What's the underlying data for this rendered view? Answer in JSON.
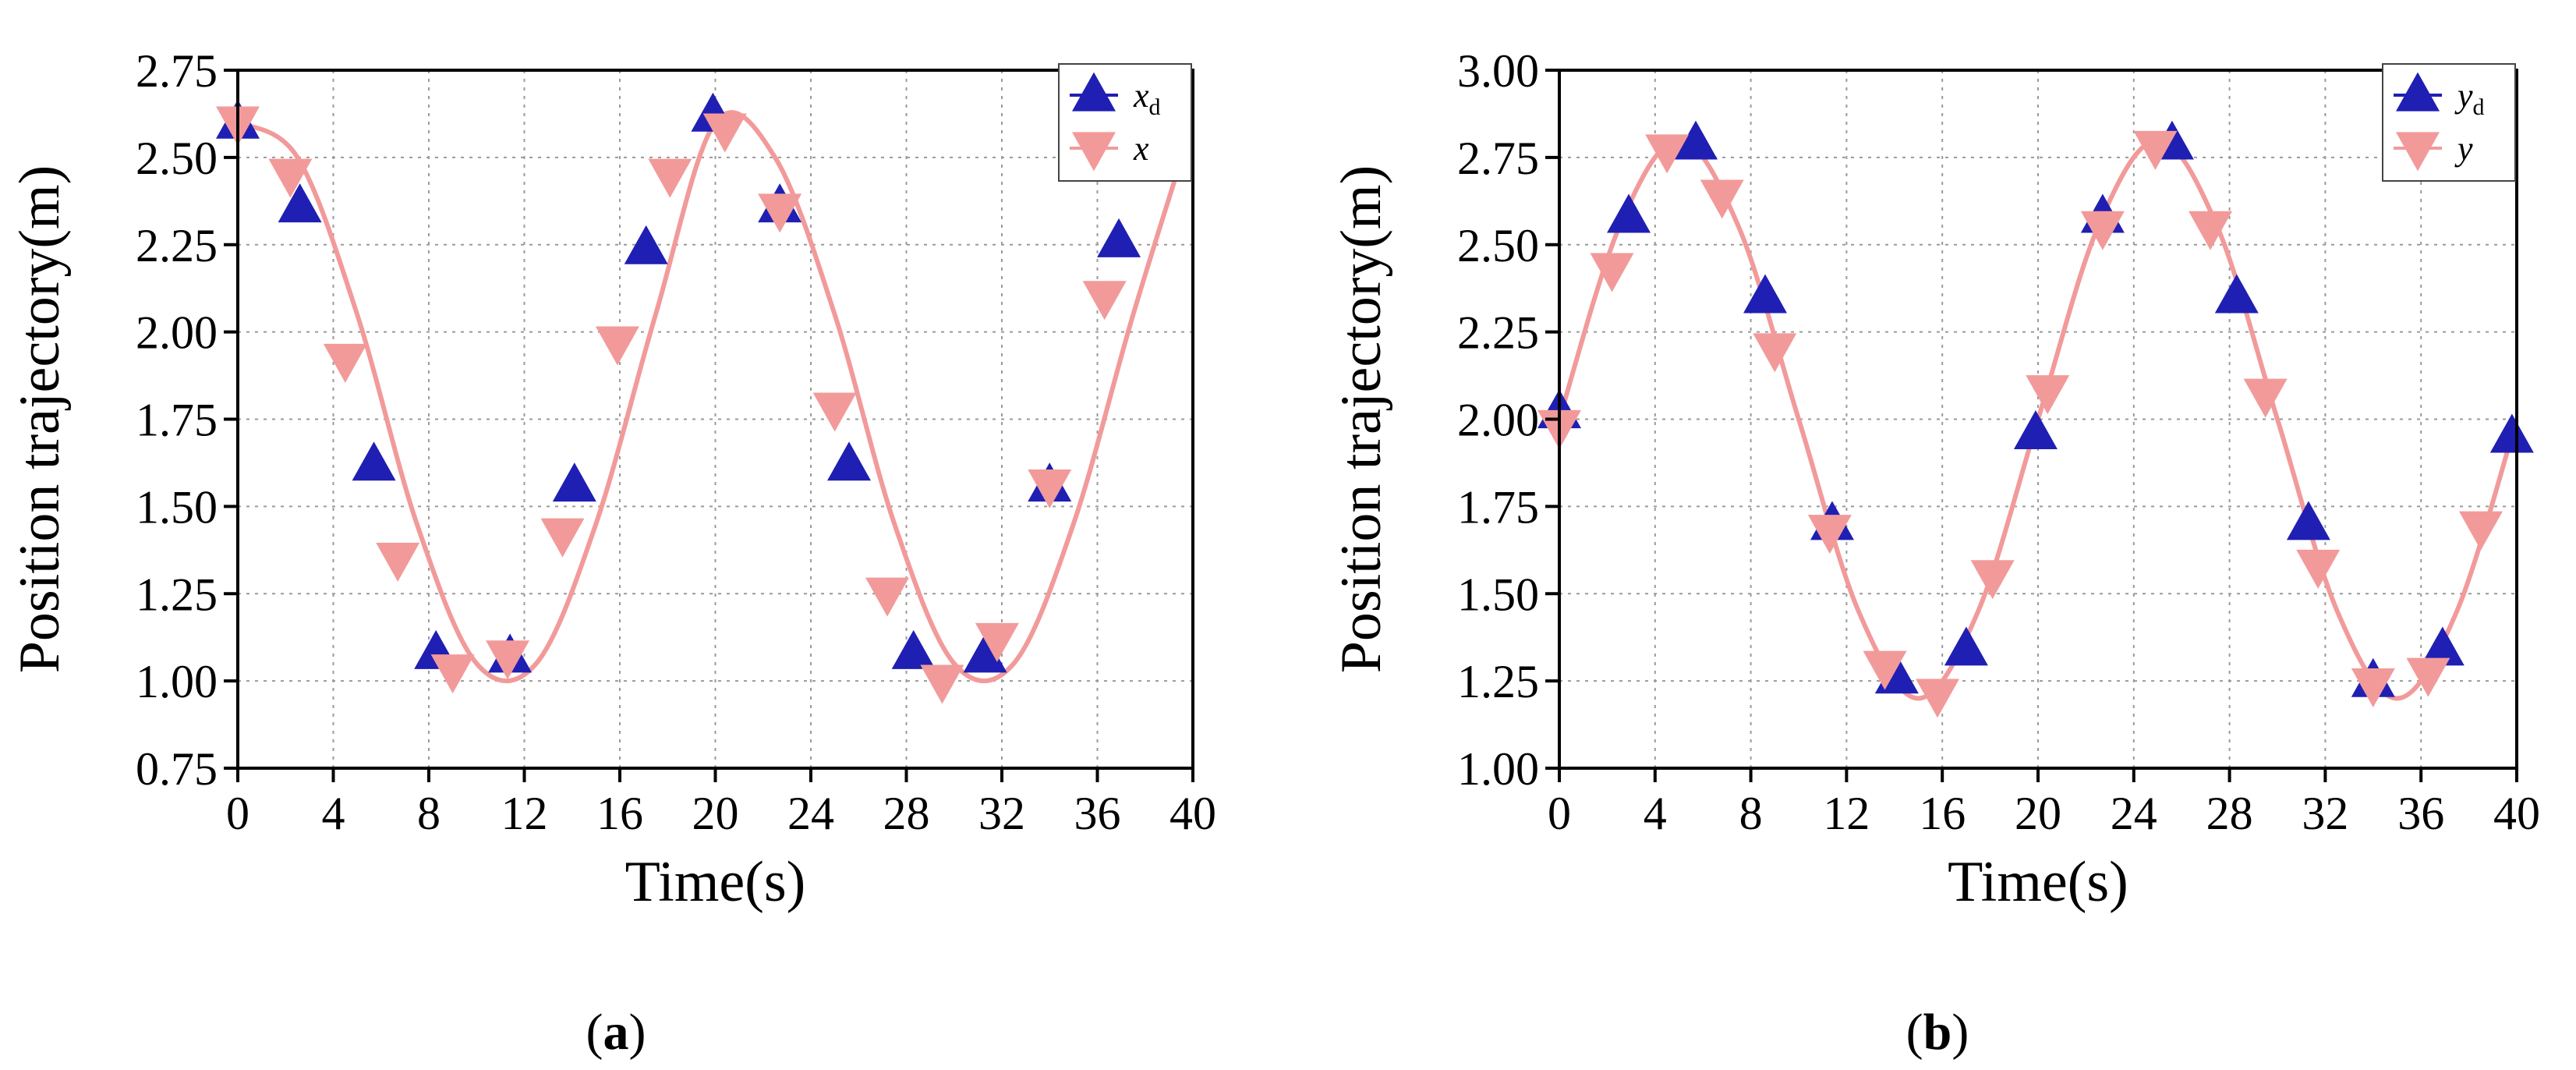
{
  "colors": {
    "desired": "#1f1fb4",
    "actual": "#f29a9a",
    "grid": "#9a9a9a",
    "axis": "#000000"
  },
  "chart_data": [
    {
      "type": "line",
      "caption": {
        "open": "(",
        "letter": "a",
        "close": ")"
      },
      "xlabel": "Time(s)",
      "ylabel": "Position trajectory(m)",
      "xlim": [
        0,
        40
      ],
      "ylim": [
        0.75,
        2.75
      ],
      "xticks": [
        0,
        4,
        8,
        12,
        16,
        20,
        24,
        28,
        32,
        36,
        40
      ],
      "yticks": [
        "0.75",
        "1.00",
        "1.25",
        "1.50",
        "1.75",
        "2.00",
        "2.25",
        "2.50",
        "2.75"
      ],
      "grid": true,
      "legend": {
        "placement": "top-right"
      },
      "series": [
        {
          "name": "x",
          "subscript": "d",
          "marker": "triangle-up",
          "color": "#1f1fb4",
          "x": [
            0,
            2.5,
            5.0,
            7.5,
            10.0,
            12.5,
            15.0,
            17.5,
            20.0,
            22.5,
            25.0,
            27.5,
            30.0,
            32.5,
            35.0,
            37.5,
            40.0
          ],
          "y": [
            2.6,
            2.5,
            2.05,
            1.45,
            1.05,
            1.05,
            1.45,
            2.05,
            2.6,
            2.5,
            2.05,
            1.45,
            1.05,
            1.05,
            1.45,
            2.05,
            2.6
          ],
          "markers": {
            "x": [
              0,
              2.6,
              5.7,
              8.3,
              11.4,
              14.1,
              17.1,
              19.9,
              22.7,
              25.6,
              28.3,
              31.3,
              34.0,
              36.9
            ],
            "y": [
              2.6,
              2.36,
              1.62,
              1.08,
              1.07,
              1.56,
              2.24,
              2.62,
              2.36,
              1.62,
              1.08,
              1.07,
              1.56,
              2.26
            ]
          }
        },
        {
          "name": "x",
          "subscript": "",
          "marker": "triangle-down",
          "color": "#f29a9a",
          "x": [
            0,
            2.5,
            5.0,
            7.5,
            10.0,
            12.5,
            15.0,
            17.5,
            20.0,
            22.5,
            25.0,
            27.5,
            30.0,
            32.5,
            35.0,
            37.5,
            40.0
          ],
          "y": [
            2.6,
            2.5,
            2.05,
            1.45,
            1.05,
            1.05,
            1.45,
            2.05,
            2.6,
            2.5,
            2.05,
            1.45,
            1.05,
            1.05,
            1.45,
            2.05,
            2.6
          ],
          "markers": {
            "x": [
              0,
              2.2,
              4.5,
              6.7,
              9.0,
              11.3,
              13.6,
              15.9,
              18.1,
              20.4,
              22.7,
              25.0,
              27.2,
              29.5,
              31.8,
              34.0,
              36.3
            ],
            "y": [
              2.6,
              2.45,
              1.92,
              1.35,
              1.03,
              1.07,
              1.42,
              1.97,
              2.45,
              2.58,
              2.35,
              1.78,
              1.25,
              1.0,
              1.12,
              1.56,
              2.1
            ]
          }
        }
      ]
    },
    {
      "type": "line",
      "caption": {
        "open": "(",
        "letter": "b",
        "close": ")"
      },
      "xlabel": "Time(s)",
      "ylabel": "Position trajectory(m)",
      "xlim": [
        0,
        40
      ],
      "ylim": [
        1.0,
        3.0
      ],
      "xticks": [
        0,
        4,
        8,
        12,
        16,
        20,
        24,
        28,
        32,
        36,
        40
      ],
      "yticks": [
        "1.00",
        "1.25",
        "1.50",
        "1.75",
        "2.00",
        "2.25",
        "2.50",
        "2.75",
        "3.00"
      ],
      "grid": true,
      "legend": {
        "placement": "top-right"
      },
      "series": [
        {
          "name": "y",
          "subscript": "d",
          "marker": "triangle-up",
          "color": "#1f1fb4",
          "x": [
            0,
            2.5,
            5.0,
            7.5,
            10.0,
            12.5,
            15.0,
            17.5,
            20.0,
            22.5,
            25.0,
            27.5,
            30.0,
            32.5,
            35.0,
            37.5,
            40.0
          ],
          "y": [
            2.0,
            2.55,
            2.8,
            2.55,
            2.0,
            1.45,
            1.2,
            1.45,
            2.0,
            2.55,
            2.8,
            2.55,
            2.0,
            1.45,
            1.2,
            1.45,
            2.0
          ],
          "markers": {
            "x": [
              0,
              2.9,
              5.7,
              8.6,
              11.4,
              14.1,
              17.0,
              19.9,
              22.7,
              25.6,
              28.3,
              31.3,
              34.0,
              36.9,
              39.8
            ],
            "y": [
              2.02,
              2.58,
              2.79,
              2.35,
              1.7,
              1.26,
              1.34,
              1.96,
              2.58,
              2.79,
              2.35,
              1.7,
              1.25,
              1.34,
              1.95
            ]
          }
        },
        {
          "name": "y",
          "subscript": "",
          "marker": "triangle-down",
          "color": "#f29a9a",
          "x": [
            0,
            2.5,
            5.0,
            7.5,
            10.0,
            12.5,
            15.0,
            17.5,
            20.0,
            22.5,
            25.0,
            27.5,
            30.0,
            32.5,
            35.0,
            37.5,
            40.0
          ],
          "y": [
            2.0,
            2.55,
            2.8,
            2.55,
            2.0,
            1.45,
            1.2,
            1.45,
            2.0,
            2.55,
            2.8,
            2.55,
            2.0,
            1.45,
            1.2,
            1.45,
            2.0
          ],
          "markers": {
            "x": [
              0,
              2.2,
              4.5,
              6.8,
              9.0,
              11.3,
              13.6,
              15.8,
              18.1,
              20.4,
              22.7,
              24.9,
              27.2,
              29.5,
              31.7,
              34.0,
              36.3,
              38.5
            ],
            "y": [
              1.98,
              2.43,
              2.77,
              2.64,
              2.2,
              1.68,
              1.29,
              1.21,
              1.55,
              2.08,
              2.55,
              2.78,
              2.55,
              2.07,
              1.58,
              1.24,
              1.27,
              1.69
            ]
          }
        }
      ]
    }
  ]
}
